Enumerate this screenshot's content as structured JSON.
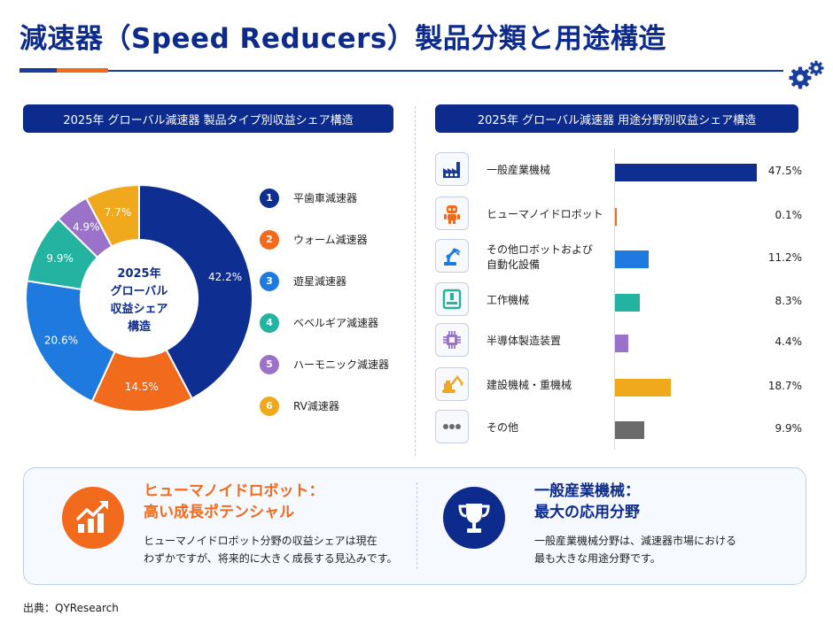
{
  "title": "減速器（Speed Reducers）製品分類と用途構造",
  "left_panel": {
    "title": "2025年 グローバル減速器 製品タイプ別収益シェア構造",
    "center_label_lines": [
      "2025年",
      "グローバル",
      "収益シェア",
      "構造"
    ]
  },
  "right_panel": {
    "title": "2025年 グローバル減速器 用途分野別収益シェア構造"
  },
  "chart_data": [
    {
      "type": "pie",
      "variant": "donut",
      "title": "2025年 グローバル減速器 製品タイプ別収益シェア構造",
      "unit": "%",
      "categories": [
        "平歯車減速器",
        "ウォーム減速器",
        "遊星減速器",
        "ベベルギア減速器",
        "ハーモニック減速器",
        "RV減速器"
      ],
      "values": [
        42.2,
        14.5,
        20.6,
        9.9,
        4.9,
        7.7
      ],
      "data_labels": [
        "42.2%",
        "14.5%",
        "20.6%",
        "9.9%",
        "4.9%",
        "7.7%"
      ],
      "legend_numbers": [
        "1",
        "2",
        "3",
        "4",
        "5",
        "6"
      ],
      "colors": [
        "#0e2f91",
        "#f26a1b",
        "#1f7ae0",
        "#23b3a0",
        "#9b72c9",
        "#f0a81c"
      ],
      "legend_position": "right"
    },
    {
      "type": "bar",
      "orientation": "horizontal",
      "title": "2025年 グローバル減速器 用途分野別収益シェア構造",
      "unit": "%",
      "categories": [
        "一般産業機械",
        "ヒューマノイドロボット",
        "その他ロボットおよび\n自動化設備",
        "工作機械",
        "半導体製造装置",
        "建設機械・重機械",
        "その他"
      ],
      "values": [
        47.5,
        0.1,
        11.2,
        8.3,
        4.4,
        18.7,
        9.9
      ],
      "data_labels": [
        "47.5%",
        "0.1%",
        "11.2%",
        "8.3%",
        "4.4%",
        "18.7%",
        "9.9%"
      ],
      "colors": [
        "#0e2f91",
        "#f26a1b",
        "#1f7ae0",
        "#23b3a0",
        "#9b72c9",
        "#f0a81c",
        "#6b6b6b"
      ],
      "icons": [
        "factory-icon",
        "robot-icon",
        "robot-arm-icon",
        "machine-tool-icon",
        "chip-icon",
        "excavator-icon",
        "more-dots-icon"
      ]
    }
  ],
  "highlights": [
    {
      "title_lines": [
        "ヒューマノイドロボット：",
        "高い成長ポテンシャル"
      ],
      "text_lines": [
        "ヒューマノイドロボット分野の収益シェアは現在",
        "わずかですが、将来的に大きく成長する見込みです。"
      ],
      "color": "#f26a1b",
      "icon": "growth-chart-icon"
    },
    {
      "title_lines": [
        "一般産業機械：",
        "最大の応用分野"
      ],
      "text_lines": [
        "一般産業機械分野は、減速器市場における",
        "最も大きな用途分野です。"
      ],
      "color": "#0d2b8c",
      "icon": "trophy-icon"
    }
  ],
  "source": "出典：QYResearch"
}
